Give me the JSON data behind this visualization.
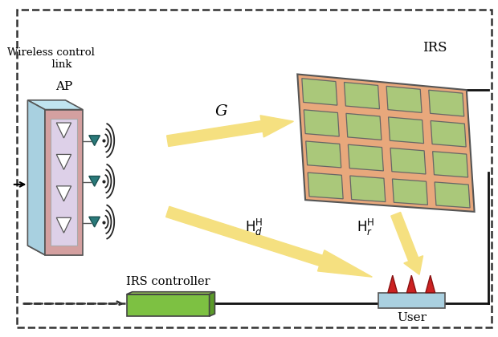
{
  "bg_color": "#ffffff",
  "irs_controller_label": "IRS controller",
  "irs_label": "IRS",
  "ap_label": "AP",
  "user_label": "User",
  "wireless_label": "Wireless control\n      link",
  "G_label": "G",
  "controller_box_color": "#7dc142",
  "controller_box_top": "#9dd455",
  "controller_box_right": "#5a9a28",
  "controller_box_edge": "#444444",
  "irs_bg_color": "#e8a87c",
  "irs_top_color": "#d4956a",
  "irs_right_color": "#c07050",
  "irs_cell_color": "#aac87a",
  "irs_cell_edge": "#555555",
  "ap_front_color": "#d4a0a0",
  "ap_side_color": "#a8d0e0",
  "ap_top_color": "#c0e4f0",
  "ap_inner_color": "#ddd0e8",
  "ap_inner_edge": "#aaaaaa",
  "user_box_color": "#aad0e0",
  "user_antenna_color": "#cc2222",
  "user_antenna_edge": "#881111",
  "antenna_teal": "#2a7a7a",
  "antenna_teal_edge": "#1a5050",
  "arrow_color": "#f5e080",
  "arrow_edge_color": "#c8a820",
  "dashed_line_color": "#333333",
  "solid_line_color": "#111111",
  "signal_color": "#222222"
}
